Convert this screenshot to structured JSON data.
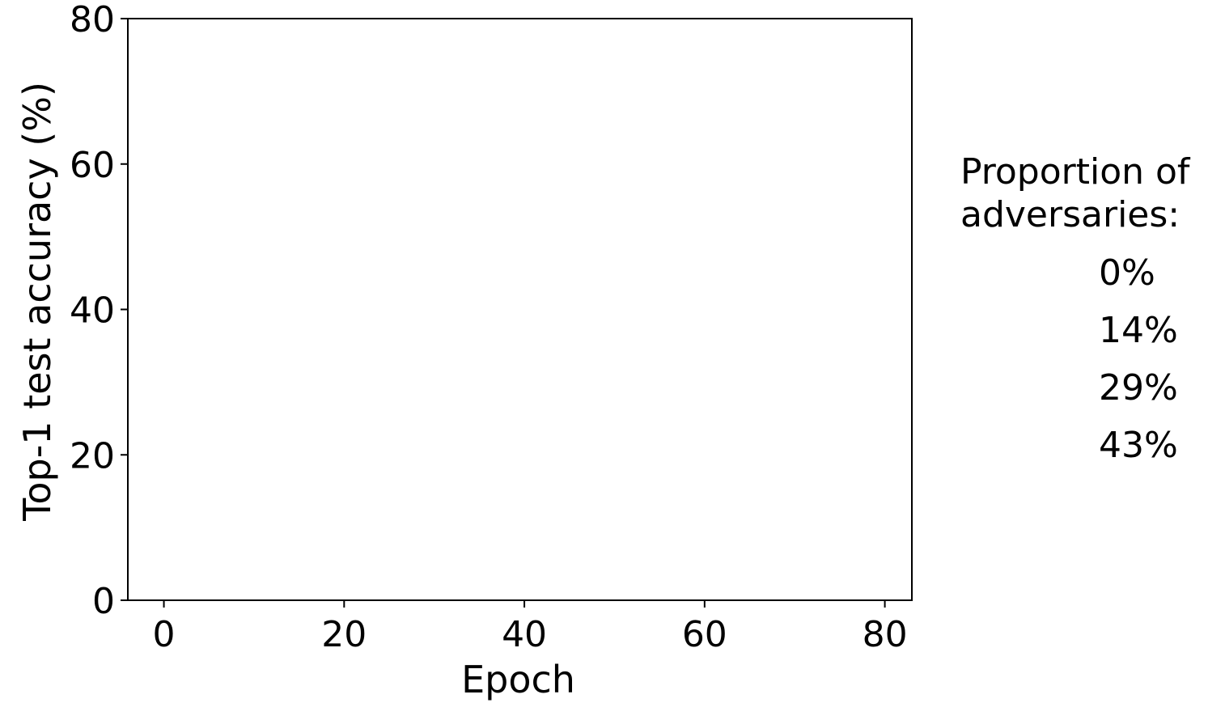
{
  "chart_data": {
    "type": "line",
    "title": "",
    "xlabel": "Epoch",
    "ylabel": "Top-1 test accuracy (%)",
    "xlim": [
      -4,
      83
    ],
    "ylim": [
      0,
      80
    ],
    "x_ticks": [
      0,
      20,
      40,
      60,
      80
    ],
    "y_ticks": [
      0,
      20,
      40,
      60,
      80
    ],
    "grid": false,
    "legend": {
      "title": [
        "Proportion of",
        "adversaries:"
      ],
      "placement": "outside-right",
      "entries": [
        "0%",
        "14%",
        "29%",
        "43%"
      ]
    },
    "series": []
  }
}
